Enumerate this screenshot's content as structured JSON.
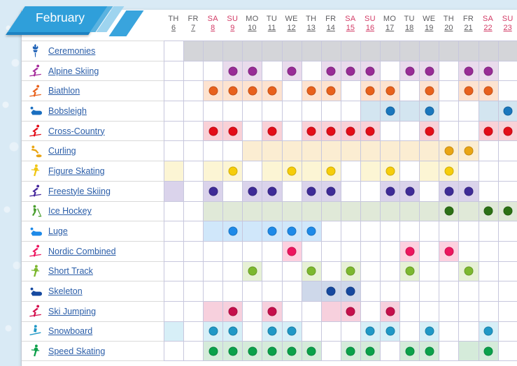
{
  "banner": {
    "month": "February"
  },
  "colors": {
    "weekday": "#5d5d60",
    "weekend": "#d23b66",
    "link": "#2a5da8"
  },
  "header": {
    "days": [
      {
        "dow": "TH",
        "date": "6",
        "weekend": false
      },
      {
        "dow": "FR",
        "date": "7",
        "weekend": false
      },
      {
        "dow": "SA",
        "date": "8",
        "weekend": true
      },
      {
        "dow": "SU",
        "date": "9",
        "weekend": true
      },
      {
        "dow": "MO",
        "date": "10",
        "weekend": false
      },
      {
        "dow": "TU",
        "date": "11",
        "weekend": false
      },
      {
        "dow": "WE",
        "date": "12",
        "weekend": false
      },
      {
        "dow": "TH",
        "date": "13",
        "weekend": false
      },
      {
        "dow": "FR",
        "date": "14",
        "weekend": false
      },
      {
        "dow": "SA",
        "date": "15",
        "weekend": true
      },
      {
        "dow": "SU",
        "date": "16",
        "weekend": true
      },
      {
        "dow": "MO",
        "date": "17",
        "weekend": false
      },
      {
        "dow": "TU",
        "date": "18",
        "weekend": false
      },
      {
        "dow": "WE",
        "date": "19",
        "weekend": false
      },
      {
        "dow": "TH",
        "date": "20",
        "weekend": false
      },
      {
        "dow": "FR",
        "date": "21",
        "weekend": false
      },
      {
        "dow": "SA",
        "date": "22",
        "weekend": true
      },
      {
        "dow": "SU",
        "date": "23",
        "weekend": true
      }
    ]
  },
  "cell_states": {
    "empty": "",
    "competition": "a",
    "medal_event": "m"
  },
  "sports": [
    {
      "label": "Ceremonies",
      "icon": "ceremonies-icon",
      "variant": "torch",
      "icon_color": "#1b5fb5",
      "shade": "#d4d5d9",
      "dot_color": "",
      "cells": [
        "",
        "a",
        "a",
        "a",
        "a",
        "a",
        "a",
        "a",
        "a",
        "a",
        "a",
        "a",
        "a",
        "a",
        "a",
        "a",
        "a",
        "a"
      ]
    },
    {
      "label": "Alpine Skiing",
      "icon": "alpine-skiing-icon",
      "variant": "skier",
      "icon_color": "#a62c9c",
      "shade": "#e9dbec",
      "dot_color": "#982c96",
      "cells": [
        "",
        "",
        "",
        "m",
        "m",
        "",
        "m",
        "",
        "m",
        "m",
        "m",
        "",
        "m",
        "m",
        "",
        "m",
        "m",
        ""
      ]
    },
    {
      "label": "Biathlon",
      "icon": "biathlon-icon",
      "variant": "skier",
      "icon_color": "#e8611b",
      "shade": "#fde3d0",
      "dot_color": "#e8611c",
      "cells": [
        "",
        "",
        "m",
        "m",
        "m",
        "m",
        "",
        "m",
        "m",
        "",
        "m",
        "m",
        "",
        "m",
        "",
        "m",
        "m",
        ""
      ]
    },
    {
      "label": "Bobsleigh",
      "icon": "bobsleigh-icon",
      "variant": "sled",
      "icon_color": "#1b6fc0",
      "shade": "#d3e5f0",
      "dot_color": "#1a77bd",
      "cells": [
        "",
        "",
        "",
        "",
        "",
        "",
        "",
        "",
        "",
        "",
        "a",
        "m",
        "a",
        "m",
        "",
        "",
        "a",
        "m"
      ]
    },
    {
      "label": "Cross-Country",
      "icon": "cross-country-icon",
      "variant": "skier",
      "icon_color": "#e30d18",
      "shade": "#f9d1d7",
      "dot_color": "#e30d18",
      "cells": [
        "",
        "",
        "m",
        "m",
        "",
        "m",
        "",
        "m",
        "m",
        "m",
        "m",
        "",
        "",
        "m",
        "",
        "",
        "m",
        "m"
      ]
    },
    {
      "label": "Curling",
      "icon": "curling-icon",
      "variant": "curling",
      "icon_color": "#e9a514",
      "shade": "#fbedd2",
      "dot_color": "#e9a514",
      "cells": [
        "",
        "",
        "",
        "",
        "a",
        "a",
        "a",
        "a",
        "a",
        "a",
        "a",
        "a",
        "a",
        "a",
        "m",
        "m",
        "",
        ""
      ]
    },
    {
      "label": "Figure Skating",
      "icon": "figure-skating-icon",
      "variant": "skater",
      "icon_color": "#f0c614",
      "shade": "#fcf5d4",
      "dot_color": "#f6cd0b",
      "cells": [
        "a",
        "",
        "a",
        "m",
        "",
        "a",
        "m",
        "a",
        "m",
        "",
        "a",
        "m",
        "",
        "a",
        "m",
        "",
        "",
        ""
      ]
    },
    {
      "label": "Freestyle Skiing",
      "icon": "freestyle-skiing-icon",
      "variant": "skier",
      "icon_color": "#44269c",
      "shade": "#dad3eb",
      "dot_color": "#3e2b97",
      "cells": [
        "a",
        "",
        "m",
        "",
        "m",
        "m",
        "",
        "m",
        "m",
        "",
        "",
        "m",
        "m",
        "",
        "m",
        "m",
        "",
        ""
      ]
    },
    {
      "label": "Ice Hockey",
      "icon": "ice-hockey-icon",
      "variant": "hockey",
      "icon_color": "#4a9e2f",
      "shade": "#e0e9d8",
      "dot_color": "#2c7115",
      "cells": [
        "",
        "",
        "a",
        "a",
        "a",
        "a",
        "a",
        "a",
        "a",
        "a",
        "a",
        "a",
        "a",
        "a",
        "m",
        "a",
        "m",
        "m"
      ]
    },
    {
      "label": "Luge",
      "icon": "luge-icon",
      "variant": "sled",
      "icon_color": "#1e8ae8",
      "shade": "#d0e7fa",
      "dot_color": "#1e8ae8",
      "cells": [
        "",
        "",
        "a",
        "m",
        "a",
        "m",
        "m",
        "m",
        "",
        "",
        "",
        "",
        "",
        "",
        "",
        "",
        "",
        ""
      ]
    },
    {
      "label": "Nordic Combined",
      "icon": "nordic-combined-icon",
      "variant": "skier",
      "icon_color": "#ed155e",
      "shade": "#fdd0df",
      "dot_color": "#ed155e",
      "cells": [
        "",
        "",
        "",
        "",
        "",
        "",
        "m",
        "",
        "",
        "",
        "",
        "",
        "m",
        "",
        "m",
        "",
        "",
        ""
      ]
    },
    {
      "label": "Short Track",
      "icon": "short-track-icon",
      "variant": "skater",
      "icon_color": "#7cb82f",
      "shade": "#e7f1d6",
      "dot_color": "#7cb82f",
      "cells": [
        "",
        "",
        "",
        "",
        "m",
        "",
        "",
        "m",
        "",
        "m",
        "",
        "",
        "m",
        "",
        "",
        "m",
        "",
        ""
      ]
    },
    {
      "label": "Skeleton",
      "icon": "skeleton-icon",
      "variant": "sled",
      "icon_color": "#16499f",
      "shade": "#ced8ea",
      "dot_color": "#16499f",
      "cells": [
        "",
        "",
        "",
        "",
        "",
        "",
        "",
        "a",
        "m",
        "m",
        "",
        "",
        "",
        "",
        "",
        "",
        "",
        ""
      ]
    },
    {
      "label": "Ski Jumping",
      "icon": "ski-jumping-icon",
      "variant": "skier",
      "icon_color": "#d40f4d",
      "shade": "#f7d0dd",
      "dot_color": "#c50f4b",
      "cells": [
        "",
        "",
        "a",
        "m",
        "",
        "m",
        "",
        "",
        "a",
        "m",
        "",
        "m",
        "",
        "",
        "",
        "",
        "",
        ""
      ]
    },
    {
      "label": "Snowboard",
      "icon": "snowboard-icon",
      "variant": "snowboard",
      "icon_color": "#2098c6",
      "shade": "#d7eff7",
      "dot_color": "#2098c6",
      "cells": [
        "a",
        "",
        "m",
        "m",
        "",
        "m",
        "m",
        "",
        "",
        "",
        "m",
        "m",
        "",
        "m",
        "",
        "",
        "m",
        ""
      ]
    },
    {
      "label": "Speed Skating",
      "icon": "speed-skating-icon",
      "variant": "skater",
      "icon_color": "#0ea04b",
      "shade": "#d5ebda",
      "dot_color": "#0ba14a",
      "cells": [
        "",
        "",
        "m",
        "m",
        "m",
        "m",
        "m",
        "m",
        "",
        "m",
        "m",
        "",
        "m",
        "m",
        "",
        "a",
        "m",
        ""
      ]
    }
  ]
}
